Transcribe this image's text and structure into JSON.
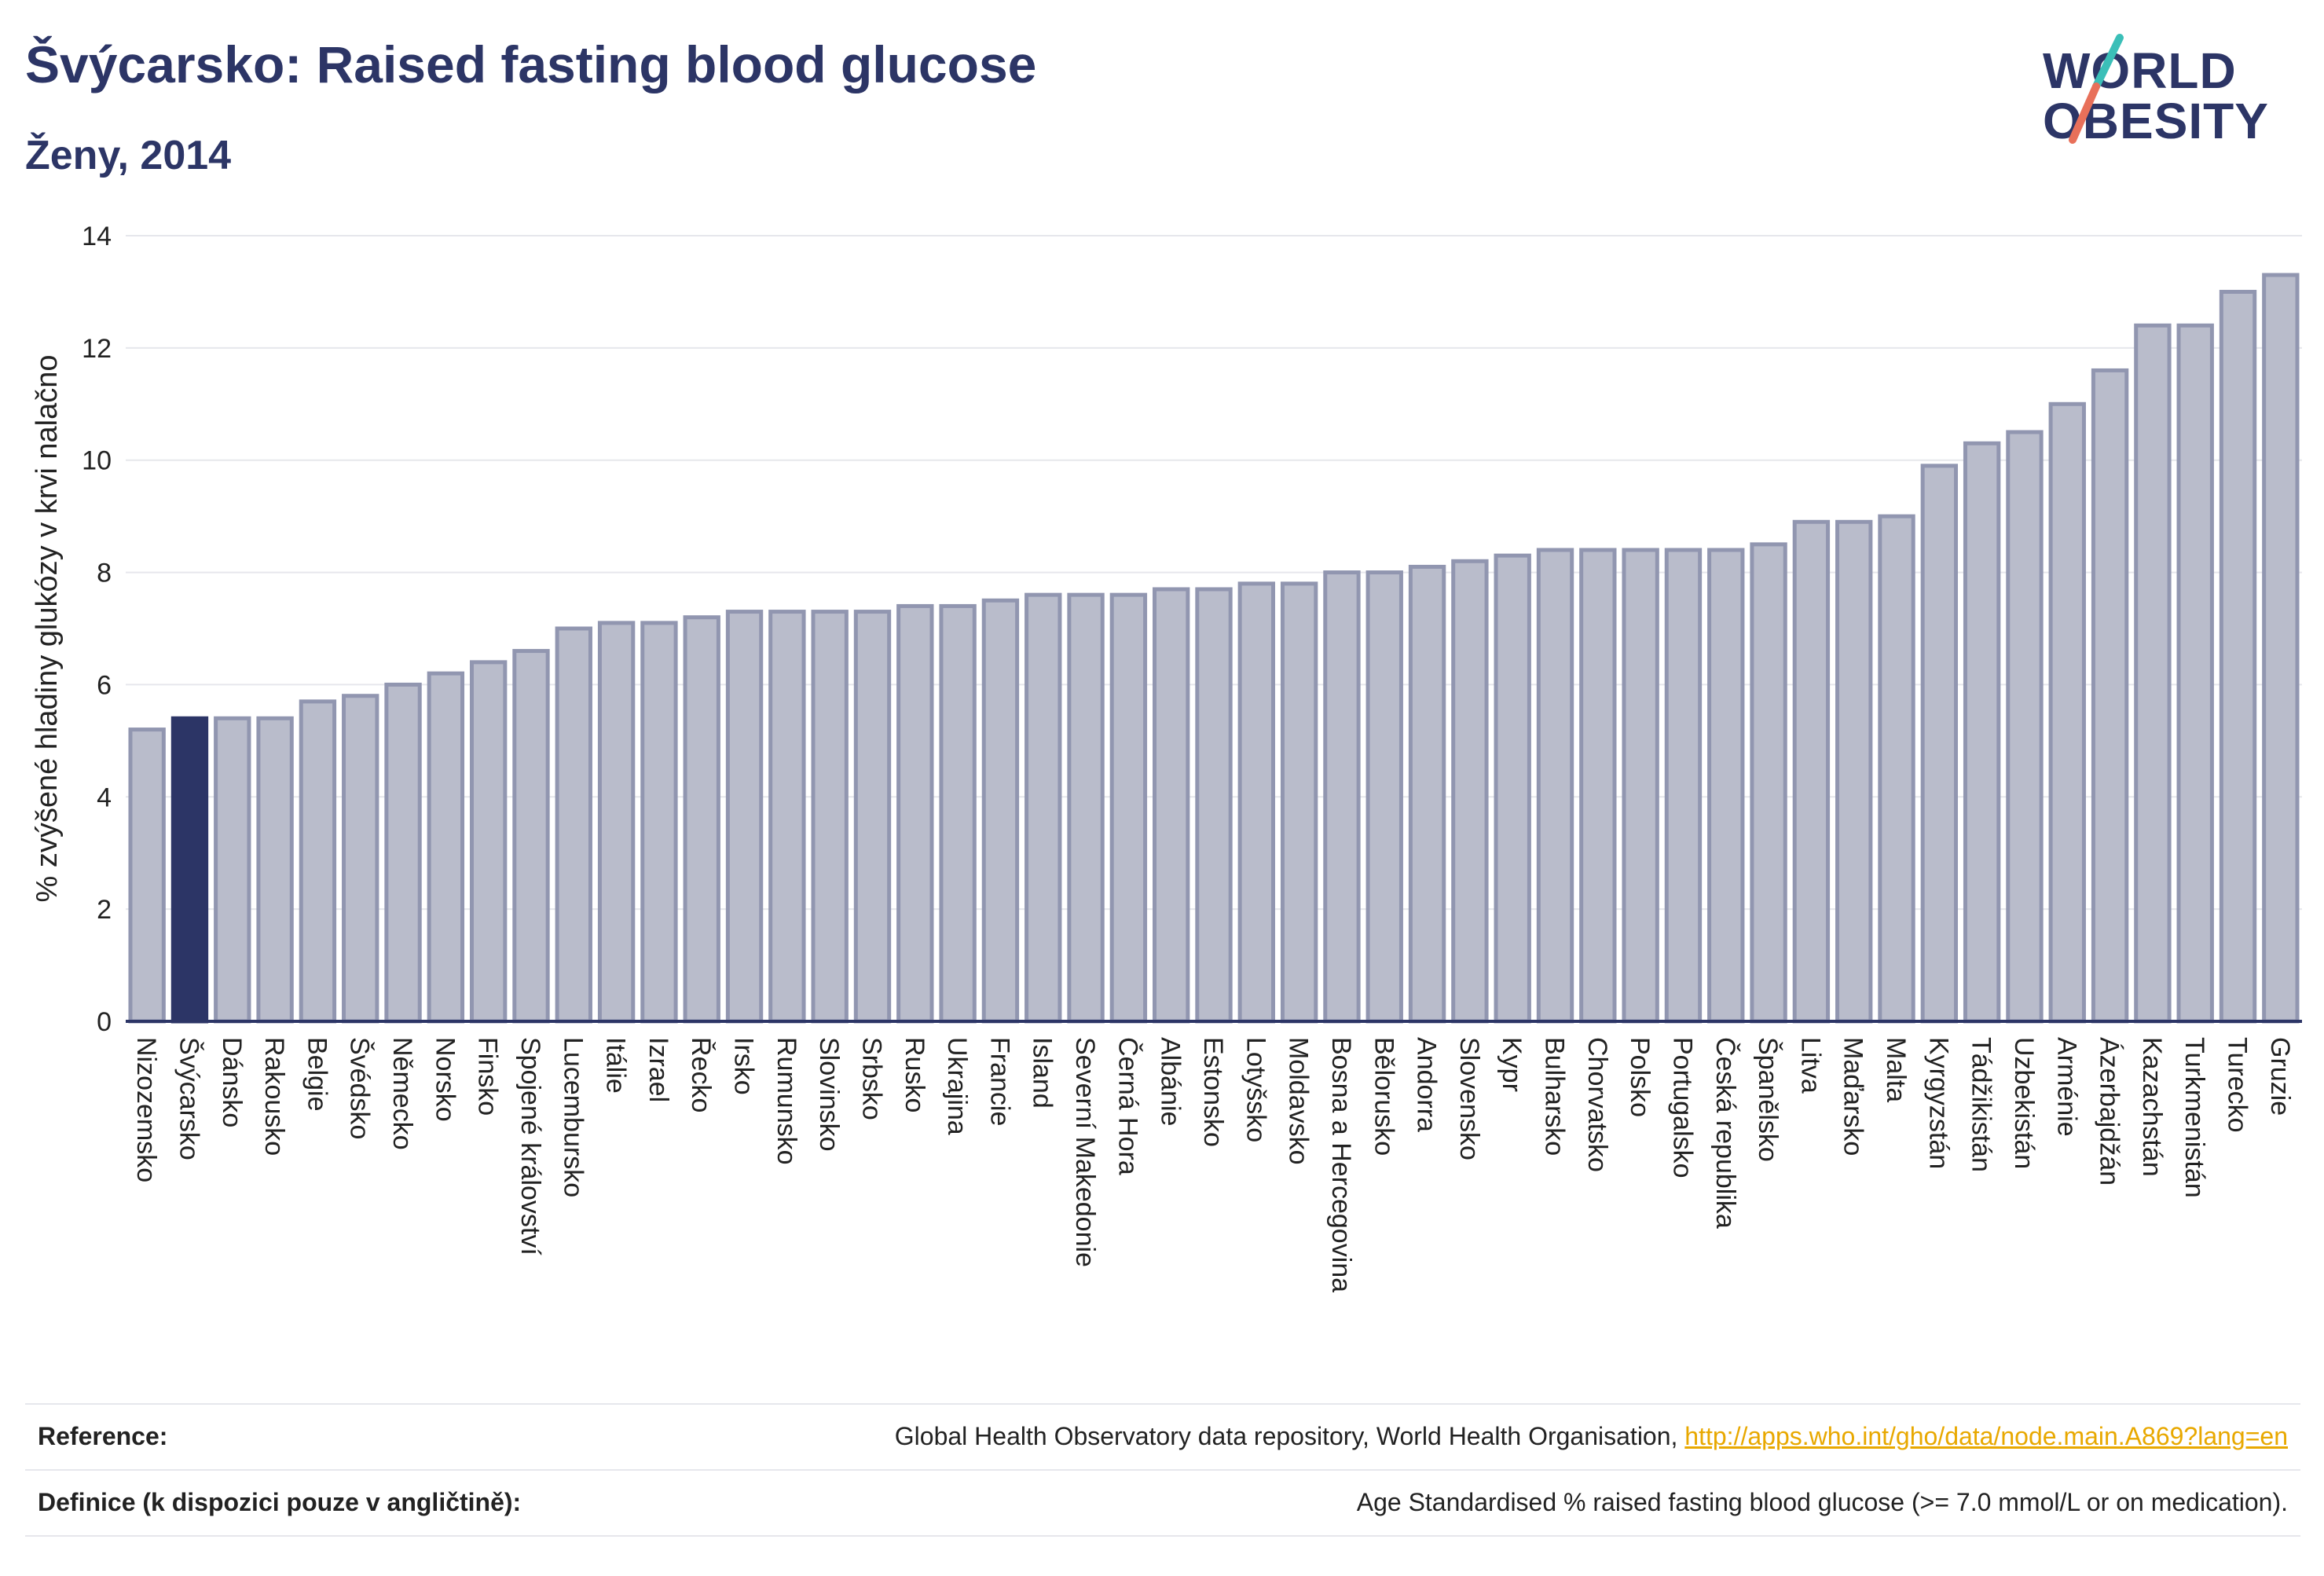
{
  "header": {
    "title": "Švýcarsko: Raised fasting blood glucose",
    "subtitle": "Ženy, 2014"
  },
  "logo": {
    "line1": "WORLD",
    "line2": "OBESITY",
    "colors": {
      "text": "#2c3566",
      "slash_teal": "#3bbfb8",
      "slash_coral": "#e8705a"
    }
  },
  "footer": {
    "reference_label": "Reference:",
    "reference_text": "Global Health Observatory data repository, World Health Organisation, ",
    "reference_link": "http://apps.who.int/gho/data/node.main.A869?lang=en",
    "definition_label": "Definice (k dispozici pouze v angličtině):",
    "definition_text": "Age Standardised % raised fasting blood glucose (>= 7.0 mmol/L or on medication)."
  },
  "chart_data": {
    "type": "bar",
    "ylabel": "% zvýšené hladiny glukózy v krvi nalačno",
    "ylim": [
      0,
      14
    ],
    "yticks": [
      0,
      2,
      4,
      6,
      8,
      10,
      12,
      14
    ],
    "grid": true,
    "highlight": "Švýcarsko",
    "colors": {
      "bar": "#b9bccb",
      "bar_edge": "#9196b0",
      "highlight": "#2c3566",
      "grid": "#e6e7ec",
      "axis": "#2c3566"
    },
    "categories": [
      "Nizozemsko",
      "Švýcarsko",
      "Dánsko",
      "Rakousko",
      "Belgie",
      "Švédsko",
      "Německo",
      "Norsko",
      "Finsko",
      "Spojené království",
      "Lucembursko",
      "Itálie",
      "Izrael",
      "Řecko",
      "Irsko",
      "Rumunsko",
      "Slovinsko",
      "Srbsko",
      "Rusko",
      "Ukrajina",
      "Francie",
      "Island",
      "Severní Makedonie",
      "Černá Hora",
      "Albánie",
      "Estonsko",
      "Lotyšsko",
      "Moldavsko",
      "Bosna a Hercegovina",
      "Bělorusko",
      "Andorra",
      "Slovensko",
      "Kypr",
      "Bulharsko",
      "Chorvatsko",
      "Polsko",
      "Portugalsko",
      "Česká republika",
      "Španělsko",
      "Litva",
      "Maďarsko",
      "Malta",
      "Kyrgyzstán",
      "Tádžikistán",
      "Uzbekistán",
      "Arménie",
      "Ázerbajdžán",
      "Kazachstán",
      "Turkmenistán",
      "Turecko",
      "Gruzie"
    ],
    "values": [
      5.2,
      5.4,
      5.4,
      5.4,
      5.7,
      5.8,
      6.0,
      6.2,
      6.4,
      6.6,
      7.0,
      7.1,
      7.1,
      7.2,
      7.3,
      7.3,
      7.3,
      7.3,
      7.4,
      7.4,
      7.5,
      7.6,
      7.6,
      7.6,
      7.7,
      7.7,
      7.8,
      7.8,
      8.0,
      8.0,
      8.1,
      8.2,
      8.3,
      8.4,
      8.4,
      8.4,
      8.4,
      8.4,
      8.5,
      8.9,
      8.9,
      9.0,
      9.9,
      10.3,
      10.5,
      11.0,
      11.6,
      12.4,
      12.4,
      13.0,
      13.3
    ]
  }
}
